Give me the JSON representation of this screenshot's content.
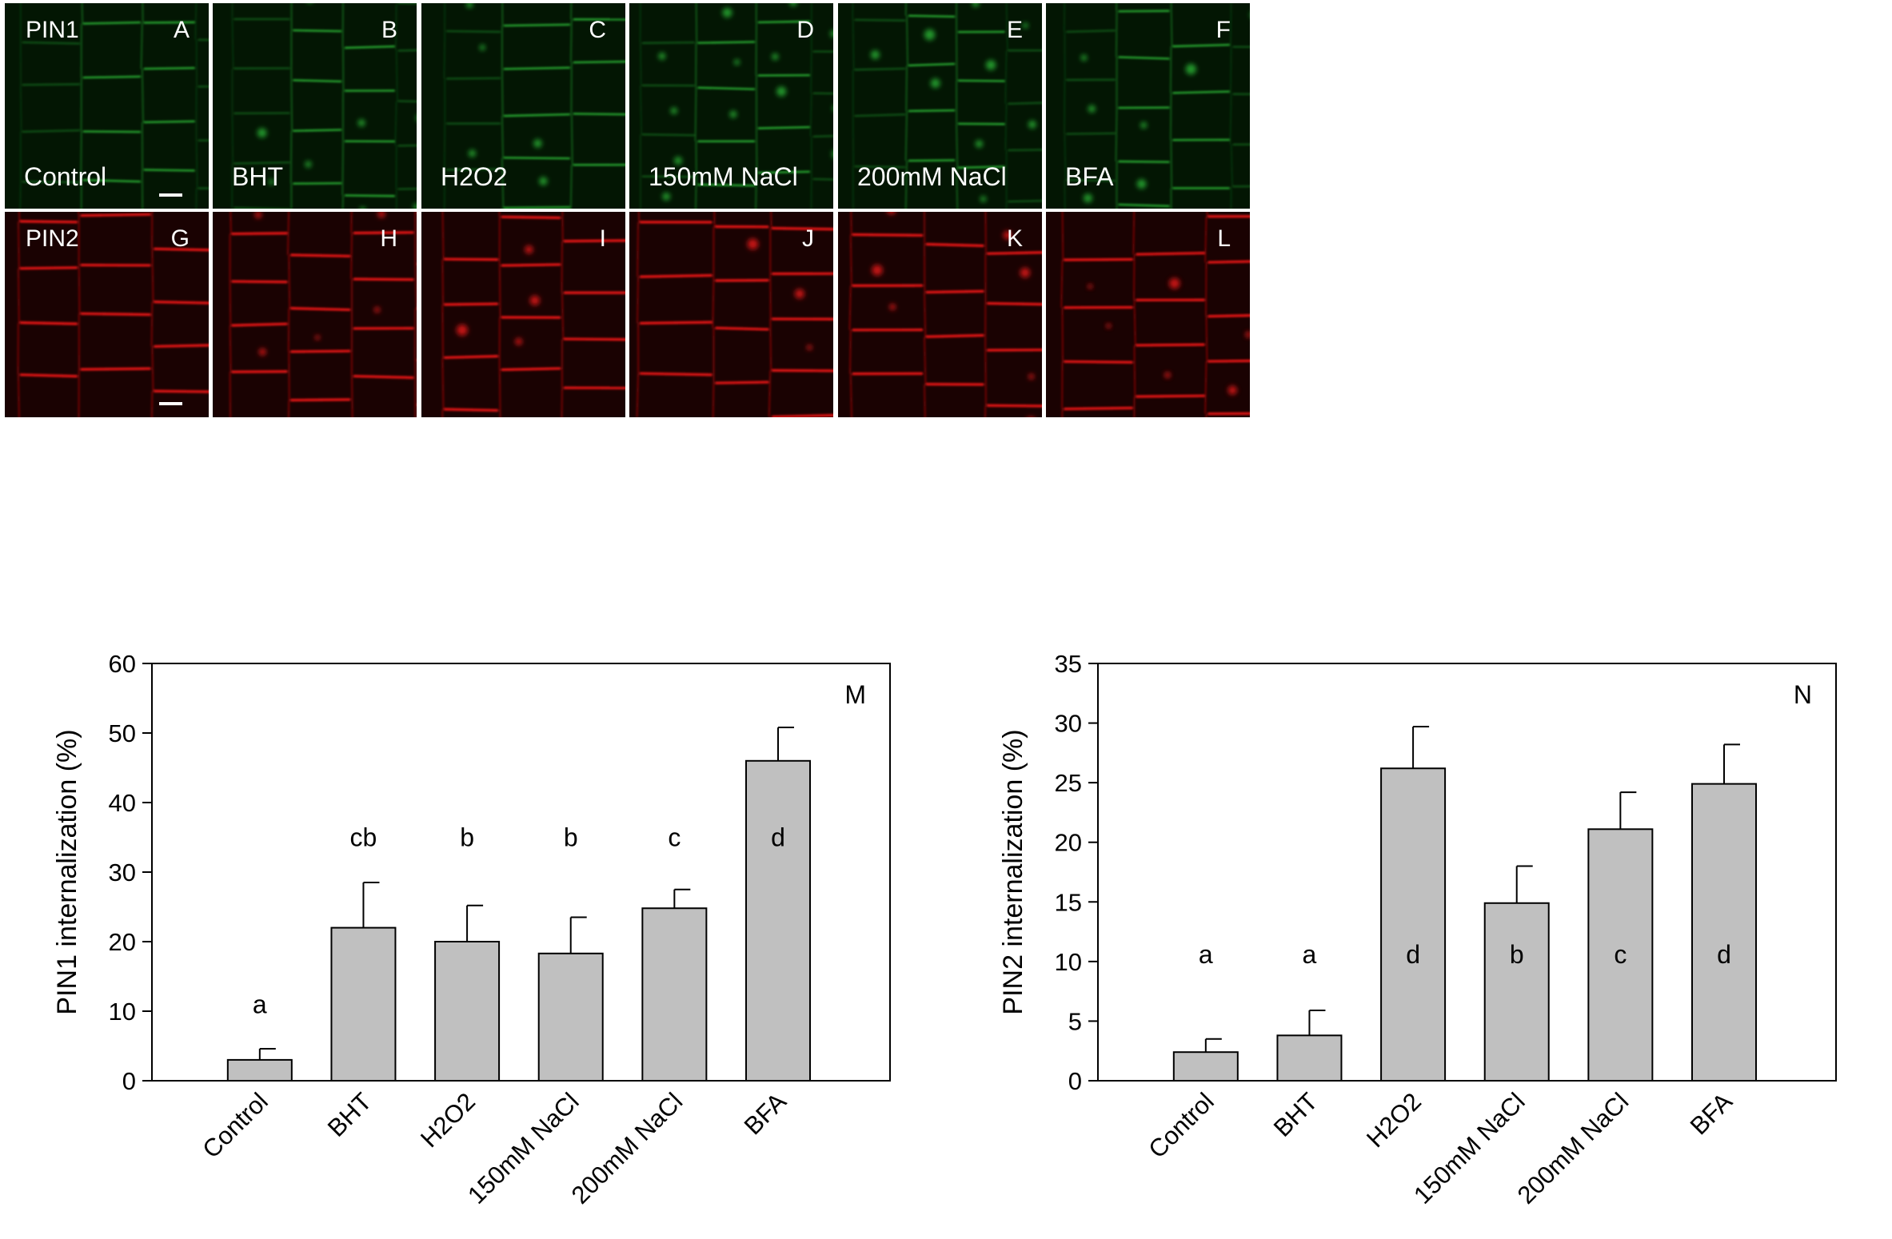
{
  "micrographs": {
    "pin1_panels": [
      {
        "letter": "A",
        "row_label": "PIN1",
        "treatment": "Control",
        "scale_bar": true
      },
      {
        "letter": "B",
        "row_label": "",
        "treatment": "BHT",
        "scale_bar": false
      },
      {
        "letter": "C",
        "row_label": "",
        "treatment": "H2O2",
        "scale_bar": false
      },
      {
        "letter": "D",
        "row_label": "",
        "treatment": "150mM NaCl",
        "scale_bar": false
      },
      {
        "letter": "E",
        "row_label": "",
        "treatment": "200mM NaCl",
        "scale_bar": false
      },
      {
        "letter": "F",
        "row_label": "",
        "treatment": "BFA",
        "scale_bar": false
      }
    ],
    "pin2_panels": [
      {
        "letter": "G",
        "row_label": "PIN2",
        "treatment": "",
        "scale_bar": true
      },
      {
        "letter": "H",
        "row_label": "",
        "treatment": "",
        "scale_bar": false
      },
      {
        "letter": "I",
        "row_label": "",
        "treatment": "",
        "scale_bar": false
      },
      {
        "letter": "J",
        "row_label": "",
        "treatment": "",
        "scale_bar": false
      },
      {
        "letter": "K",
        "row_label": "",
        "treatment": "",
        "scale_bar": false
      },
      {
        "letter": "L",
        "row_label": "",
        "treatment": "",
        "scale_bar": false
      }
    ],
    "pin1_color": "#2fc43a",
    "pin2_color": "#ff1a1a"
  },
  "chart_data": [
    {
      "type": "bar",
      "panel_letter": "M",
      "ylabel": "PIN1 internalization (%)",
      "xlabel": "",
      "ylim": [
        0,
        60
      ],
      "yticks": [
        0,
        10,
        20,
        30,
        40,
        50,
        60
      ],
      "categories": [
        "Control",
        "BHT",
        "H2O2",
        "150mM NaCl",
        "200mM NaCl",
        "BFA"
      ],
      "values": [
        3,
        22,
        20,
        18.3,
        24.8,
        46
      ],
      "errors": [
        1.6,
        6.5,
        5.2,
        5.2,
        2.7,
        4.8
      ],
      "letters": [
        "a",
        "cb",
        "b",
        "b",
        "c",
        "d"
      ],
      "letter_positions_y": [
        11,
        35,
        35,
        35,
        35,
        35
      ],
      "bar_color": "#c0c0c0"
    },
    {
      "type": "bar",
      "panel_letter": "N",
      "ylabel": "PIN2 internalization (%)",
      "xlabel": "",
      "ylim": [
        0,
        35
      ],
      "yticks": [
        0,
        5,
        10,
        15,
        20,
        25,
        30,
        35
      ],
      "categories": [
        "Control",
        "BHT",
        "H2O2",
        "150mM NaCl",
        "200mM NaCl",
        "BFA"
      ],
      "values": [
        2.4,
        3.8,
        26.2,
        14.9,
        21.1,
        24.9
      ],
      "errors": [
        1.1,
        2.1,
        3.5,
        3.1,
        3.1,
        3.3
      ],
      "letters": [
        "a",
        "a",
        "d",
        "b",
        "c",
        "d"
      ],
      "letter_positions_y": [
        10.6,
        10.6,
        10.6,
        10.6,
        10.6,
        10.6
      ],
      "bar_color": "#c0c0c0"
    }
  ]
}
